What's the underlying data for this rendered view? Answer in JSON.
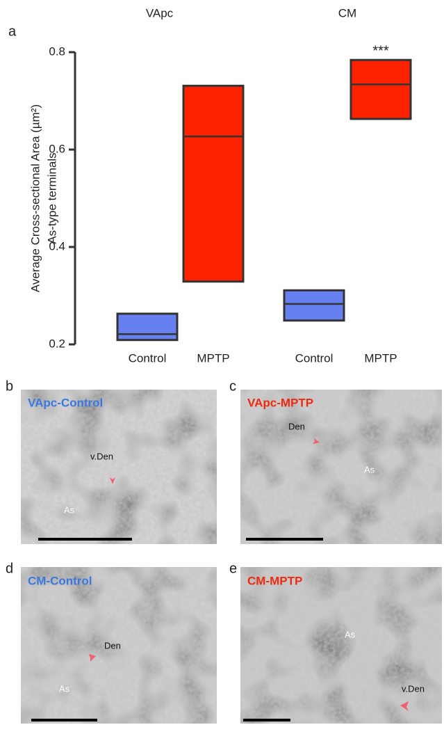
{
  "chart_data": {
    "type": "floating-box",
    "panel_label": "a",
    "group_labels": [
      "VApc",
      "CM"
    ],
    "ylabel": [
      "Average Cross-sectional Area (µm²)",
      "As-type terminals"
    ],
    "categories": [
      "Control",
      "MPTP",
      "Control",
      "MPTP"
    ],
    "low": [
      0.209,
      0.329,
      0.249,
      0.663
    ],
    "median": [
      0.221,
      0.627,
      0.283,
      0.734
    ],
    "high": [
      0.263,
      0.731,
      0.311,
      0.784
    ],
    "colors": [
      "#6680f2",
      "#ff2200",
      "#6680f2",
      "#ff2200"
    ],
    "annotation": "***",
    "ylim": [
      0.2,
      0.8
    ],
    "yticks": [
      0.2,
      0.4,
      0.6,
      0.8
    ]
  },
  "panels": [
    {
      "letter": "b",
      "title": "VApc-Control",
      "color": "#3a78e0",
      "labels": [
        "v.Den",
        "As"
      ]
    },
    {
      "letter": "c",
      "title": "VApc-MPTP",
      "color": "#ee2a10",
      "labels": [
        "Den",
        "As"
      ]
    },
    {
      "letter": "d",
      "title": "CM-Control",
      "color": "#3a78e0",
      "labels": [
        "Den",
        "As"
      ]
    },
    {
      "letter": "e",
      "title": "CM-MPTP",
      "color": "#ee2a10",
      "labels": [
        "As",
        "v.Den"
      ]
    }
  ]
}
